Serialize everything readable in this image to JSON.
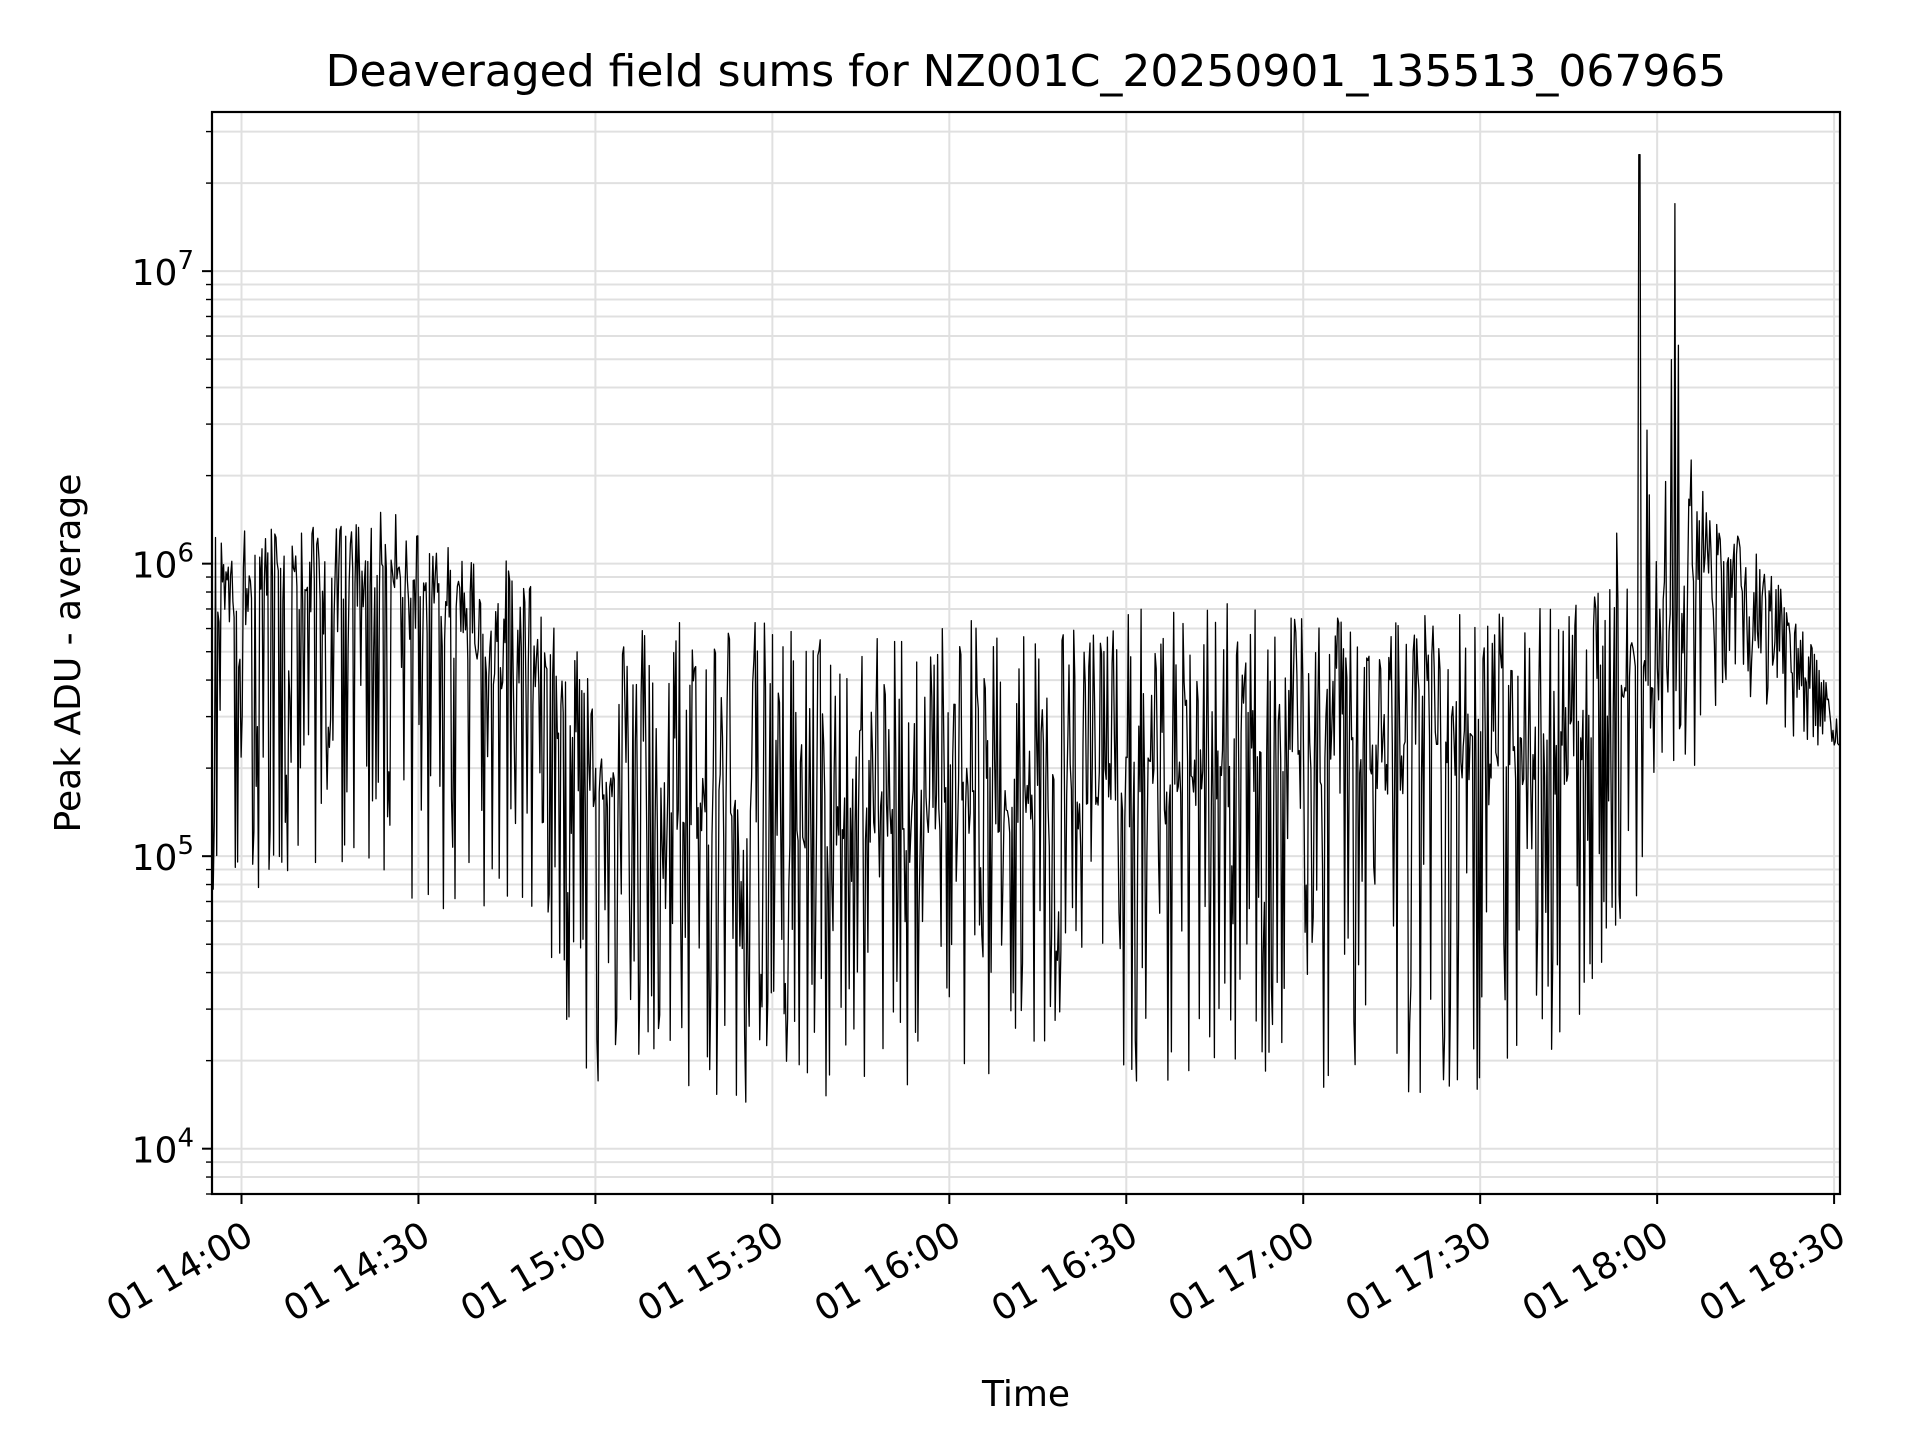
{
  "chart_data": {
    "type": "line",
    "title": "Deaveraged field sums for NZ001C_20250901_135513_067965",
    "xlabel": "Time",
    "ylabel": "Peak ADU - average",
    "x_axis": {
      "kind": "time",
      "xlim": [
        "13:55",
        "18:31"
      ],
      "tick_times": [
        "14:00",
        "14:30",
        "15:00",
        "15:30",
        "16:00",
        "16:30",
        "17:00",
        "17:30",
        "18:00",
        "18:30"
      ]
    },
    "x_tick_labels": [
      "01 14:00",
      "01 14:30",
      "01 15:00",
      "01 15:30",
      "01 16:00",
      "01 16:30",
      "01 17:00",
      "01 17:30",
      "01 18:00",
      "01 18:30"
    ],
    "y_axis": {
      "scale": "log",
      "ylim": [
        7000,
        35000000
      ],
      "tick_values": [
        10000,
        100000,
        1000000,
        10000000
      ]
    },
    "y_tick_labels": [
      {
        "base": "10",
        "exp": "4"
      },
      {
        "base": "10",
        "exp": "5"
      },
      {
        "base": "10",
        "exp": "6"
      },
      {
        "base": "10",
        "exp": "7"
      }
    ],
    "grid": true,
    "line_color": "#000000",
    "grid_color": "#e0e0e0",
    "series": [
      {
        "x": [
          "13:55",
          "14:05",
          "14:15",
          "14:25",
          "14:35",
          "14:45",
          "14:52",
          "14:58",
          "15:05",
          "15:15",
          "15:25",
          "15:35",
          "15:45",
          "16:00",
          "16:15",
          "16:30",
          "16:45",
          "17:00",
          "17:15",
          "17:30",
          "17:45",
          "17:52",
          "17:57",
          "18:00",
          "18:03",
          "18:08",
          "18:13",
          "18:20",
          "18:26",
          "18:31"
        ],
        "y": [
          700000,
          750000,
          700000,
          850000,
          600000,
          450000,
          380000,
          180000,
          150000,
          130000,
          120000,
          110000,
          120000,
          140000,
          150000,
          160000,
          180000,
          190000,
          200000,
          210000,
          220000,
          300000,
          500000,
          400000,
          600000,
          900000,
          800000,
          550000,
          450000,
          240000
        ],
        "y_max": [
          1450000,
          1500000,
          1500000,
          1700000,
          1300000,
          1200000,
          900000,
          700000,
          800000,
          1000000,
          900000,
          850000,
          750000,
          850000,
          800000,
          900000,
          950000,
          950000,
          900000,
          850000,
          900000,
          1000000,
          25000000,
          1300000,
          17000000,
          1900000,
          1500000,
          1000000,
          550000,
          300000
        ],
        "y_min": [
          60000,
          55000,
          80000,
          60000,
          45000,
          50000,
          40000,
          10500,
          17000,
          11000,
          10200,
          11000,
          12000,
          13000,
          14000,
          12000,
          13000,
          12500,
          11500,
          12000,
          13000,
          45000,
          50000,
          55000,
          80000,
          250000,
          300000,
          250000,
          220000,
          240000
        ]
      }
    ]
  }
}
